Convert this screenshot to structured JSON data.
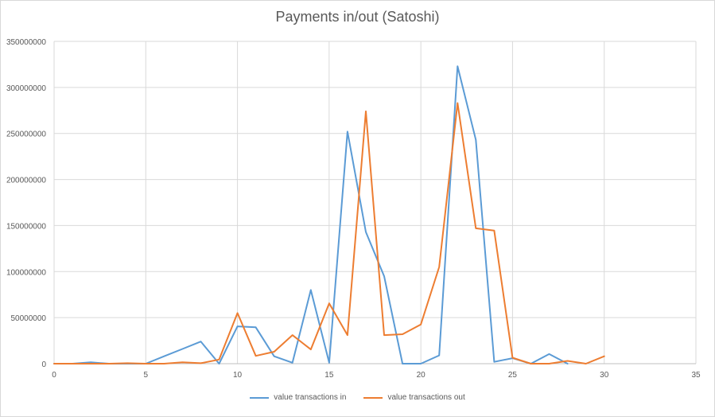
{
  "chart_data": {
    "type": "line",
    "title": "Payments in/out (Satoshi)",
    "xlabel": "",
    "ylabel": "",
    "xlim": [
      0,
      35
    ],
    "ylim": [
      0,
      350000000
    ],
    "x_ticks": [
      "0",
      "5",
      "10",
      "15",
      "20",
      "25",
      "30",
      "35"
    ],
    "y_ticks": [
      "0",
      "50000000",
      "100000000",
      "150000000",
      "200000000",
      "250000000",
      "300000000",
      "350000000"
    ],
    "grid": true,
    "legend_position": "bottom",
    "x": [
      0,
      1,
      2,
      3,
      4,
      5,
      6,
      7,
      8,
      9,
      10,
      11,
      12,
      13,
      14,
      15,
      16,
      17,
      18,
      19,
      20,
      21,
      22,
      23,
      24,
      25,
      26,
      27,
      28,
      29,
      30
    ],
    "series": [
      {
        "name": "value transactions in",
        "color": "#5b9bd5",
        "values": [
          0,
          0,
          1500000,
          0,
          0,
          0,
          8000000,
          16000000,
          24000000,
          0,
          40500000,
          39500000,
          8000000,
          1000000,
          80000000,
          1000000,
          252000000,
          143000000,
          95000000,
          0,
          0,
          9000000,
          323000000,
          243000000,
          2000000,
          6000000,
          0,
          10500000,
          0,
          null,
          null
        ]
      },
      {
        "name": "value transactions out",
        "color": "#ed7d31",
        "values": [
          0,
          0,
          0,
          0,
          500000,
          0,
          0,
          1500000,
          500000,
          4500000,
          55000000,
          8500000,
          13000000,
          31000000,
          15500000,
          65500000,
          31000000,
          274000000,
          31000000,
          32000000,
          42500000,
          105000000,
          283000000,
          147000000,
          144500000,
          6500000,
          0,
          0,
          3000000,
          0,
          8000000
        ]
      }
    ]
  }
}
